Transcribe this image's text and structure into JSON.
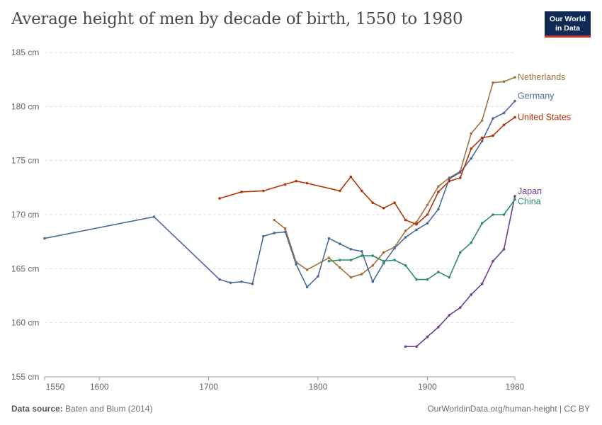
{
  "title": "Average height of men by decade of birth, 1550 to 1980",
  "logo": {
    "line1": "Our World",
    "line2": "in Data"
  },
  "footer": {
    "source_label": "Data source:",
    "source_text": "Baten and Blum (2014)",
    "url": "OurWorldinData.org/human-height | CC BY"
  },
  "colors": {
    "Netherlands": "#a2723b",
    "Germany": "#4c6a9c",
    "United States": "#b13507",
    "Japan": "#6d3e91",
    "China": "#2f8c6b"
  },
  "chart_data": {
    "type": "line",
    "title": "Average height of men by decade of birth, 1550 to 1980",
    "xlim": [
      1550,
      1980
    ],
    "ylim": [
      155,
      185
    ],
    "grid": true,
    "unit": "cm",
    "x_ticks": [
      1550,
      1600,
      1700,
      1800,
      1900,
      1980
    ],
    "y_ticks": [
      155,
      160,
      165,
      170,
      175,
      180,
      185
    ],
    "y_tick_labels": [
      "155 cm",
      "160 cm",
      "165 cm",
      "170 cm",
      "175 cm",
      "180 cm",
      "185 cm"
    ],
    "series": [
      {
        "name": "Netherlands",
        "x": [
          1760,
          1770,
          1780,
          1790,
          1810,
          1820,
          1830,
          1840,
          1850,
          1860,
          1870,
          1880,
          1890,
          1900,
          1910,
          1920,
          1930,
          1940,
          1950,
          1960,
          1970,
          1980
        ],
        "y": [
          169.5,
          168.7,
          165.6,
          164.9,
          166.0,
          165.1,
          164.2,
          164.5,
          165.3,
          166.5,
          167.0,
          168.5,
          169.3,
          170.9,
          172.6,
          173.4,
          174.0,
          177.5,
          178.7,
          182.2,
          182.3,
          182.7
        ]
      },
      {
        "name": "Germany",
        "x": [
          1550,
          1650,
          1710,
          1720,
          1730,
          1740,
          1750,
          1760,
          1770,
          1780,
          1790,
          1800,
          1810,
          1820,
          1830,
          1840,
          1850,
          1860,
          1870,
          1880,
          1890,
          1900,
          1910,
          1920,
          1930,
          1940,
          1950,
          1960,
          1970,
          1980
        ],
        "y": [
          167.8,
          169.8,
          164.0,
          163.7,
          163.8,
          163.6,
          168.0,
          168.3,
          168.4,
          165.4,
          163.3,
          164.3,
          167.8,
          167.3,
          166.8,
          166.6,
          163.8,
          165.5,
          166.9,
          167.9,
          168.6,
          169.2,
          170.5,
          173.3,
          173.9,
          175.2,
          176.8,
          178.9,
          179.4,
          180.5
        ]
      },
      {
        "name": "United States",
        "x": [
          1710,
          1730,
          1750,
          1770,
          1780,
          1790,
          1820,
          1830,
          1840,
          1850,
          1860,
          1870,
          1880,
          1890,
          1900,
          1910,
          1920,
          1930,
          1940,
          1950,
          1960,
          1970,
          1980
        ],
        "y": [
          171.5,
          172.1,
          172.2,
          172.8,
          173.1,
          172.9,
          172.2,
          173.5,
          172.2,
          171.1,
          170.6,
          171.1,
          169.5,
          169.1,
          170.0,
          172.1,
          173.1,
          173.4,
          176.1,
          177.1,
          177.3,
          178.3,
          179.0
        ]
      },
      {
        "name": "Japan",
        "x": [
          1880,
          1890,
          1900,
          1910,
          1920,
          1930,
          1940,
          1950,
          1960,
          1970,
          1980
        ],
        "y": [
          157.8,
          157.8,
          158.7,
          159.6,
          160.7,
          161.4,
          162.6,
          163.6,
          165.7,
          166.8,
          171.7
        ]
      },
      {
        "name": "China",
        "x": [
          1810,
          1820,
          1830,
          1840,
          1850,
          1860,
          1870,
          1880,
          1890,
          1900,
          1910,
          1920,
          1930,
          1940,
          1950,
          1960,
          1970,
          1980
        ],
        "y": [
          165.7,
          165.8,
          165.8,
          166.2,
          166.2,
          165.7,
          165.8,
          165.3,
          164.0,
          164.0,
          164.7,
          164.2,
          166.5,
          167.4,
          169.2,
          170.0,
          170.0,
          171.4
        ]
      }
    ],
    "end_labels": [
      "Netherlands",
      "Germany",
      "United States",
      "Japan",
      "China"
    ]
  }
}
